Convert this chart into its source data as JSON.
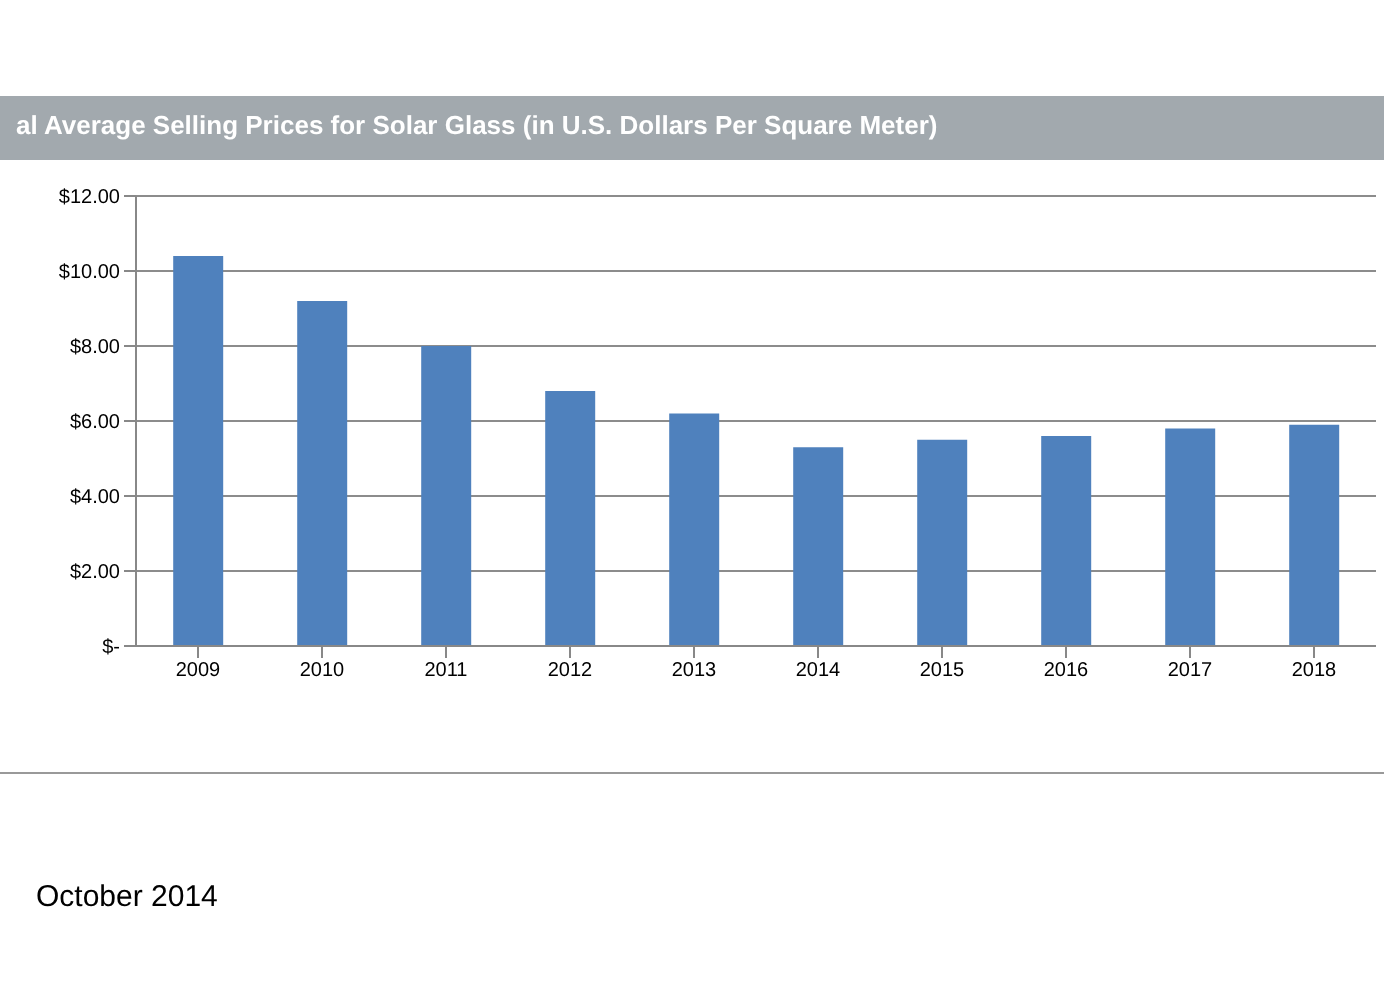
{
  "chart_data": {
    "type": "bar",
    "title": "al Average Selling Prices for Solar Glass (in U.S. Dollars Per Square Meter)",
    "categories": [
      "2009",
      "2010",
      "2011",
      "2012",
      "2013",
      "2014",
      "2015",
      "2016",
      "2017",
      "2018"
    ],
    "values": [
      10.4,
      9.2,
      8.0,
      6.8,
      6.2,
      5.3,
      5.5,
      5.6,
      5.8,
      5.9
    ],
    "color": "#4f81bd",
    "ylim": [
      0,
      12
    ],
    "yticks": [
      {
        "value": 0,
        "label": "$-"
      },
      {
        "value": 2,
        "label": "$2.00"
      },
      {
        "value": 4,
        "label": "$4.00"
      },
      {
        "value": 6,
        "label": "$6.00"
      },
      {
        "value": 8,
        "label": "$8.00"
      },
      {
        "value": 10,
        "label": "$10.00"
      },
      {
        "value": 12,
        "label": "$12.00"
      }
    ],
    "grid": "y",
    "annotations": [
      "October 2014"
    ]
  }
}
